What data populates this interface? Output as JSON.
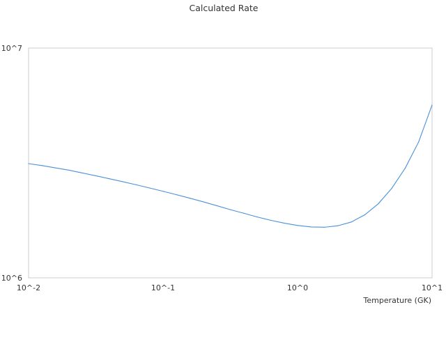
{
  "chart_data": {
    "type": "line",
    "title": "Calculated Rate",
    "xlabel": "Temperature (GK)",
    "ylabel": "",
    "x_scale": "log",
    "y_scale": "log",
    "xlim": [
      0.01,
      10
    ],
    "ylim": [
      1000000,
      10000000
    ],
    "x_tick_labels": [
      "10^-2",
      "10^-1",
      "10^0",
      "10^1"
    ],
    "y_tick_labels": [
      "10^6",
      "10^7"
    ],
    "grid": false,
    "legend": "none",
    "colors": {
      "line": "#4a90d9",
      "axis": "#cccccc",
      "text": "#333333"
    },
    "series": [
      {
        "x": [
          0.01,
          0.0126,
          0.0158,
          0.02,
          0.0251,
          0.0316,
          0.0398,
          0.0501,
          0.0631,
          0.0794,
          0.1,
          0.1259,
          0.1585,
          0.1995,
          0.2512,
          0.3162,
          0.3981,
          0.5012,
          0.631,
          0.7943,
          1.0,
          1.2589,
          1.5849,
          1.9953,
          2.5119,
          3.1623,
          3.9811,
          5.0119,
          6.3096,
          7.9433,
          10.0
        ],
        "y": [
          3140000,
          3080000,
          3010000,
          2940000,
          2860000,
          2780000,
          2700000,
          2620000,
          2540000,
          2460000,
          2380000,
          2300000,
          2220000,
          2140000,
          2060000,
          1980000,
          1910000,
          1840000,
          1780000,
          1730000,
          1690000,
          1665000,
          1660000,
          1685000,
          1750000,
          1880000,
          2100000,
          2450000,
          3000000,
          3900000,
          5650000
        ]
      }
    ]
  }
}
